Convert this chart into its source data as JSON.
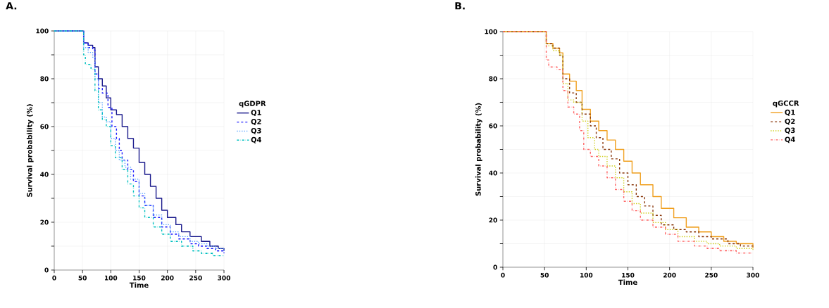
{
  "chart_data": [
    {
      "type": "step",
      "title": "A.",
      "xlabel": "Time",
      "ylabel": "Survival probability (%)",
      "legend_title": "qGDPR",
      "legend": "right",
      "grid": true,
      "xlim": [
        0,
        300
      ],
      "ylim": [
        0,
        100
      ],
      "xticks": [
        0,
        50,
        100,
        150,
        200,
        250,
        300
      ],
      "yticks": [
        0,
        {
          "value": 10,
          "label": null
        },
        20,
        {
          "value": 30,
          "label": null
        },
        40,
        {
          "value": 50,
          "label": null
        },
        60,
        {
          "value": 70,
          "label": null
        },
        80,
        {
          "value": 90,
          "label": null
        },
        100
      ],
      "series": [
        {
          "name": "Q1",
          "color": "#1a1a8c",
          "line_style": "solid",
          "x": [
            0,
            50,
            52,
            60,
            68,
            72,
            78,
            85,
            92,
            100,
            110,
            120,
            130,
            140,
            150,
            160,
            170,
            180,
            190,
            200,
            215,
            225,
            240,
            260,
            275,
            290,
            300
          ],
          "values": [
            100,
            100,
            95,
            94,
            93,
            85,
            80,
            77,
            72,
            67,
            65,
            60,
            55,
            51,
            45,
            40,
            35,
            30,
            25,
            22,
            19,
            16,
            14,
            12,
            10,
            9,
            8
          ]
        },
        {
          "name": "Q2",
          "color": "#1f1fff",
          "line_style": "dashed",
          "x": [
            0,
            50,
            52,
            60,
            68,
            72,
            78,
            85,
            95,
            102,
            110,
            115,
            120,
            130,
            140,
            150,
            160,
            175,
            190,
            205,
            220,
            240,
            255,
            270,
            285,
            300
          ],
          "values": [
            100,
            100,
            95,
            93,
            92,
            82,
            76,
            74,
            68,
            60,
            55,
            50,
            46,
            42,
            37,
            31,
            27,
            22,
            18,
            15,
            13,
            11,
            10,
            9,
            8,
            7
          ]
        },
        {
          "name": "Q3",
          "color": "#66aaff",
          "line_style": "dotted",
          "x": [
            0,
            50,
            52,
            60,
            68,
            72,
            78,
            85,
            92,
            100,
            108,
            115,
            125,
            135,
            150,
            160,
            175,
            190,
            205,
            220,
            240,
            255,
            270,
            285,
            300
          ],
          "values": [
            100,
            100,
            93,
            91,
            89,
            80,
            70,
            64,
            62,
            55,
            50,
            46,
            43,
            38,
            32,
            27,
            23,
            19,
            16,
            14,
            12,
            11,
            10,
            9,
            8
          ]
        },
        {
          "name": "Q4",
          "color": "#00c0c0",
          "line_style": "dashdot",
          "x": [
            0,
            50,
            52,
            55,
            65,
            72,
            78,
            85,
            92,
            100,
            108,
            120,
            130,
            140,
            150,
            160,
            175,
            190,
            205,
            225,
            245,
            260,
            280,
            300
          ],
          "values": [
            100,
            100,
            90,
            86,
            84,
            75,
            67,
            63,
            60,
            52,
            47,
            42,
            36,
            31,
            26,
            22,
            18,
            15,
            12,
            10,
            8,
            7,
            6,
            6
          ]
        }
      ]
    },
    {
      "type": "step",
      "title": "B.",
      "xlabel": "Time",
      "ylabel": "Survival probability (%)",
      "legend_title": "qGCCR",
      "legend": "right",
      "grid": true,
      "xlim": [
        0,
        300
      ],
      "ylim": [
        0,
        100
      ],
      "xticks": [
        0,
        50,
        100,
        150,
        200,
        250,
        300
      ],
      "yticks": [
        0,
        {
          "value": 10,
          "label": null
        },
        20,
        {
          "value": 30,
          "label": null
        },
        40,
        {
          "value": 50,
          "label": null
        },
        60,
        {
          "value": 70,
          "label": null
        },
        80,
        {
          "value": 90,
          "label": null
        },
        100
      ],
      "series": [
        {
          "name": "Q1",
          "color": "#f0a020",
          "line_style": "solid",
          "x": [
            0,
            50,
            52,
            60,
            68,
            72,
            80,
            88,
            95,
            105,
            115,
            125,
            135,
            145,
            155,
            165,
            180,
            190,
            205,
            220,
            235,
            250,
            265,
            280,
            300
          ],
          "values": [
            100,
            100,
            95,
            93,
            91,
            82,
            79,
            75,
            67,
            62,
            58,
            54,
            50,
            45,
            40,
            35,
            30,
            25,
            21,
            17,
            15,
            13,
            11,
            10,
            8
          ]
        },
        {
          "name": "Q2",
          "color": "#8b3a0f",
          "line_style": "dashed",
          "x": [
            0,
            50,
            52,
            60,
            68,
            72,
            80,
            88,
            95,
            105,
            112,
            120,
            130,
            140,
            150,
            160,
            170,
            180,
            190,
            205,
            220,
            235,
            250,
            270,
            285,
            300
          ],
          "values": [
            100,
            100,
            95,
            93,
            90,
            80,
            74,
            70,
            65,
            60,
            55,
            50,
            46,
            40,
            35,
            30,
            26,
            22,
            18,
            16,
            15,
            13,
            12,
            10,
            9,
            8
          ]
        },
        {
          "name": "Q3",
          "color": "#d0d020",
          "line_style": "dotted",
          "x": [
            0,
            50,
            52,
            60,
            68,
            72,
            78,
            85,
            95,
            102,
            110,
            115,
            125,
            135,
            145,
            155,
            165,
            180,
            195,
            210,
            230,
            245,
            260,
            280,
            300
          ],
          "values": [
            100,
            100,
            94,
            92,
            90,
            78,
            71,
            70,
            62,
            55,
            50,
            47,
            43,
            38,
            32,
            27,
            23,
            19,
            16,
            13,
            11,
            10,
            9,
            8,
            7
          ]
        },
        {
          "name": "Q4",
          "color": "#ff6666",
          "line_style": "dashdot",
          "x": [
            0,
            50,
            52,
            55,
            65,
            72,
            78,
            85,
            92,
            97,
            105,
            115,
            125,
            135,
            145,
            155,
            165,
            180,
            195,
            210,
            230,
            245,
            260,
            280,
            300
          ],
          "values": [
            100,
            100,
            88,
            85,
            84,
            75,
            68,
            65,
            58,
            50,
            47,
            43,
            38,
            33,
            28,
            24,
            20,
            17,
            14,
            11,
            9,
            8,
            7,
            6,
            6
          ]
        }
      ]
    }
  ]
}
